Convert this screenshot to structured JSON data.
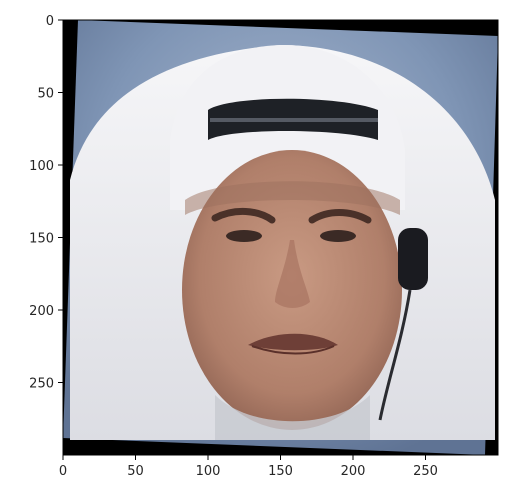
{
  "figure": {
    "image_subject": "",
    "colors": {
      "background": "#ffffff",
      "axis": "#000000",
      "text": "#262626"
    }
  },
  "chart_data": {
    "type": "image",
    "xlim": [
      0,
      300
    ],
    "ylim": [
      300,
      0
    ],
    "x_ticks": [
      0,
      50,
      100,
      150,
      200,
      250
    ],
    "y_ticks": [
      0,
      50,
      100,
      150,
      200,
      250
    ],
    "x_tick_labels": [
      "0",
      "50",
      "100",
      "150",
      "200",
      "250"
    ],
    "y_tick_labels": [
      "0",
      "50",
      "100",
      "150",
      "200",
      "250"
    ],
    "grid": false,
    "title": "",
    "xlabel": "",
    "ylabel": ""
  }
}
